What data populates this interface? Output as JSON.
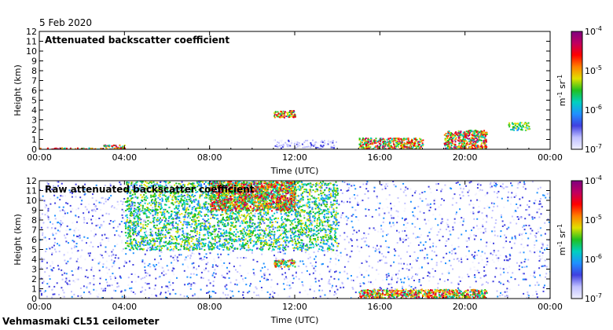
{
  "date_label": "5 Feb 2020",
  "footer_label": "Vehmasmaki CL51 ceilometer",
  "colorbar_colors": [
    "#f0f0ff",
    "#c0c0ff",
    "#4040e0",
    "#2090ff",
    "#00d0c0",
    "#20c020",
    "#e0e000",
    "#ff8000",
    "#ff0000",
    "#c00060",
    "#800080"
  ],
  "chart_data": [
    {
      "type": "heatmap",
      "title": "Attenuated backscatter coefficient",
      "xlabel": "Time (UTC)",
      "ylabel": "Height (km)",
      "x_ticks": [
        "00:00",
        "04:00",
        "08:00",
        "12:00",
        "16:00",
        "20:00",
        "00:00"
      ],
      "y_ticks": [
        "0",
        "1",
        "2",
        "3",
        "4",
        "5",
        "6",
        "7",
        "8",
        "9",
        "10",
        "11",
        "12"
      ],
      "xlim_hours": [
        0,
        24
      ],
      "ylim_km": [
        0,
        12
      ],
      "colorbar": {
        "scale": "log",
        "ticks": [
          "10",
          "10",
          "10",
          "10"
        ],
        "tick_exponents": [
          "-7",
          "-6",
          "-5",
          "-4"
        ],
        "label": "m",
        "label_exp1": "-1",
        "label_mid": " sr",
        "label_exp2": "-1"
      },
      "features": [
        {
          "hours": [
            0,
            3
          ],
          "km": [
            0,
            0.2
          ],
          "intensity": "high"
        },
        {
          "hours": [
            3,
            4
          ],
          "km": [
            0,
            0.5
          ],
          "intensity": "high"
        },
        {
          "hours": [
            11,
            12
          ],
          "km": [
            3.3,
            4
          ],
          "intensity": "high"
        },
        {
          "hours": [
            11,
            14
          ],
          "km": [
            0,
            1
          ],
          "intensity": "low"
        },
        {
          "hours": [
            15,
            18
          ],
          "km": [
            0,
            1.2
          ],
          "intensity": "high"
        },
        {
          "hours": [
            19,
            21
          ],
          "km": [
            0,
            2
          ],
          "intensity": "high"
        },
        {
          "hours": [
            22,
            23
          ],
          "km": [
            2,
            2.8
          ],
          "intensity": "medium"
        }
      ]
    },
    {
      "type": "heatmap",
      "title": "Raw attenuated backscatter coefficient",
      "xlabel": "Time (UTC)",
      "ylabel": "Height (km)",
      "x_ticks": [
        "00:00",
        "04:00",
        "08:00",
        "12:00",
        "16:00",
        "20:00",
        "00:00"
      ],
      "y_ticks": [
        "0",
        "1",
        "2",
        "3",
        "4",
        "5",
        "6",
        "7",
        "8",
        "9",
        "10",
        "11",
        "12"
      ],
      "xlim_hours": [
        0,
        24
      ],
      "ylim_km": [
        0,
        12
      ],
      "colorbar": {
        "scale": "log",
        "ticks": [
          "10",
          "10",
          "10",
          "10"
        ],
        "tick_exponents": [
          "-7",
          "-6",
          "-5",
          "-4"
        ],
        "label": "m",
        "label_exp1": "-1",
        "label_mid": " sr",
        "label_exp2": "-1"
      },
      "features": [
        {
          "hours": [
            0,
            24
          ],
          "km": [
            0,
            12
          ],
          "intensity": "noise"
        },
        {
          "hours": [
            4,
            14
          ],
          "km": [
            5,
            12
          ],
          "intensity": "medium"
        },
        {
          "hours": [
            8,
            12
          ],
          "km": [
            9,
            12
          ],
          "intensity": "high"
        },
        {
          "hours": [
            11,
            12
          ],
          "km": [
            3.3,
            4
          ],
          "intensity": "high"
        },
        {
          "hours": [
            15,
            21
          ],
          "km": [
            0,
            1
          ],
          "intensity": "high"
        }
      ]
    }
  ]
}
